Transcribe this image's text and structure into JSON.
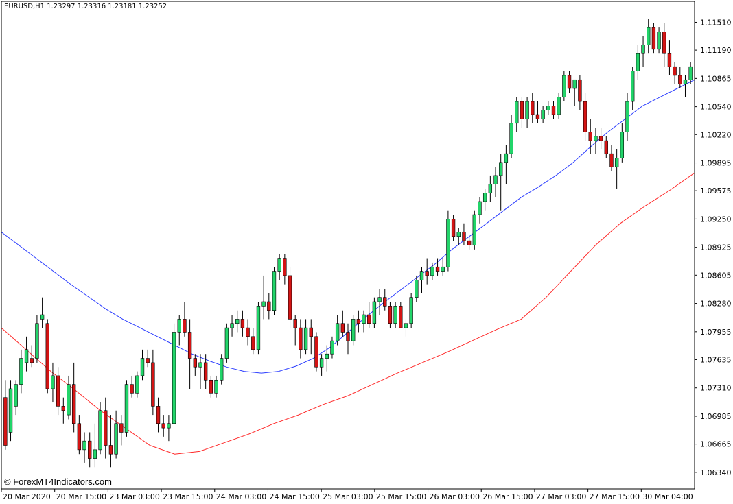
{
  "symbol_info": "EURUSD,H1  1.23297 1.23316 1.23181 1.23252",
  "watermark": "© ForexMT4Indicators.com",
  "colors": {
    "bull": "#22d56a",
    "bear": "#d41414",
    "ma_fast": "#2a3cff",
    "ma_slow": "#ff2a2a",
    "axis": "#000000"
  },
  "chart_data": {
    "type": "candlestick",
    "title": "EURUSD,H1",
    "ylim": [
      1.0615,
      1.1175
    ],
    "y_ticks": [
      "1.11510",
      "1.11190",
      "1.10865",
      "1.10540",
      "1.10220",
      "1.09895",
      "1.09575",
      "1.09250",
      "1.08925",
      "1.08605",
      "1.08280",
      "1.07955",
      "1.07635",
      "1.07310",
      "1.06985",
      "1.06665",
      "1.06340"
    ],
    "x_ticks": [
      "20 Mar 2020",
      "20 Mar 15:00",
      "23 Mar 03:00",
      "23 Mar 15:00",
      "24 Mar 03:00",
      "24 Mar 15:00",
      "25 Mar 03:00",
      "25 Mar 15:00",
      "26 Mar 03:00",
      "26 Mar 15:00",
      "27 Mar 03:00",
      "27 Mar 15:00",
      "30 Mar 04:00"
    ],
    "candles_ohlc": [
      [
        1.072,
        1.074,
        1.066,
        1.0665
      ],
      [
        1.068,
        1.074,
        1.067,
        1.073
      ],
      [
        1.071,
        1.074,
        1.07,
        1.0735
      ],
      [
        1.0735,
        1.0775,
        1.0725,
        1.0765
      ],
      [
        1.076,
        1.079,
        1.075,
        1.0775
      ],
      [
        1.0765,
        1.078,
        1.0755,
        1.076
      ],
      [
        1.0765,
        1.0815,
        1.076,
        1.0805
      ],
      [
        1.081,
        1.0835,
        1.08,
        1.0815
      ],
      [
        1.0805,
        1.081,
        1.0725,
        1.073
      ],
      [
        1.073,
        1.076,
        1.0715,
        1.0745
      ],
      [
        1.0745,
        1.0755,
        1.07,
        1.071
      ],
      [
        1.071,
        1.072,
        1.069,
        1.0705
      ],
      [
        1.07,
        1.0745,
        1.0695,
        1.0735
      ],
      [
        1.0735,
        1.076,
        1.068,
        1.069
      ],
      [
        1.069,
        1.07,
        1.0655,
        1.066
      ],
      [
        1.066,
        1.068,
        1.0645,
        1.067
      ],
      [
        1.067,
        1.068,
        1.064,
        1.065
      ],
      [
        1.065,
        1.069,
        1.064,
        1.066
      ],
      [
        1.066,
        1.0715,
        1.0655,
        1.0705
      ],
      [
        1.0705,
        1.072,
        1.065,
        1.0665
      ],
      [
        1.0665,
        1.07,
        1.064,
        1.0655
      ],
      [
        1.0655,
        1.0705,
        1.065,
        1.069
      ],
      [
        1.069,
        1.07,
        1.0665,
        1.068
      ],
      [
        1.068,
        1.074,
        1.0675,
        1.0735
      ],
      [
        1.0735,
        1.0745,
        1.072,
        1.0725
      ],
      [
        1.0725,
        1.075,
        1.072,
        1.0745
      ],
      [
        1.0745,
        1.0775,
        1.074,
        1.0765
      ],
      [
        1.0765,
        1.0775,
        1.0755,
        1.076
      ],
      [
        1.076,
        1.0775,
        1.07,
        1.071
      ],
      [
        1.071,
        1.072,
        1.068,
        1.069
      ],
      [
        1.069,
        1.07,
        1.0675,
        1.0685
      ],
      [
        1.0685,
        1.07,
        1.067,
        1.069
      ],
      [
        1.069,
        1.0805,
        1.069,
        1.0795
      ],
      [
        1.0795,
        1.0815,
        1.078,
        1.081
      ],
      [
        1.081,
        1.083,
        1.079,
        1.0795
      ],
      [
        1.0795,
        1.081,
        1.073,
        1.0765
      ],
      [
        1.0765,
        1.077,
        1.0745,
        1.0755
      ],
      [
        1.0755,
        1.077,
        1.073,
        1.076
      ],
      [
        1.076,
        1.077,
        1.073,
        1.074
      ],
      [
        1.074,
        1.0745,
        1.072,
        1.0725
      ],
      [
        1.0725,
        1.0745,
        1.072,
        1.074
      ],
      [
        1.074,
        1.077,
        1.0735,
        1.0765
      ],
      [
        1.0765,
        1.0805,
        1.076,
        1.08
      ],
      [
        1.08,
        1.0815,
        1.079,
        1.0805
      ],
      [
        1.0805,
        1.082,
        1.0795,
        1.081
      ],
      [
        1.081,
        1.082,
        1.079,
        1.08
      ],
      [
        1.08,
        1.081,
        1.078,
        1.079
      ],
      [
        1.079,
        1.08,
        1.077,
        1.0775
      ],
      [
        1.0775,
        1.083,
        1.077,
        1.0825
      ],
      [
        1.0825,
        1.086,
        1.081,
        1.083
      ],
      [
        1.083,
        1.084,
        1.081,
        1.082
      ],
      [
        1.082,
        1.087,
        1.0815,
        1.0865
      ],
      [
        1.0865,
        1.0885,
        1.0855,
        1.088
      ],
      [
        1.088,
        1.0885,
        1.085,
        1.086
      ],
      [
        1.086,
        1.087,
        1.08,
        1.081
      ],
      [
        1.081,
        1.0815,
        1.078,
        1.08
      ],
      [
        1.08,
        1.081,
        1.0765,
        1.0775
      ],
      [
        1.0775,
        1.081,
        1.077,
        1.08
      ],
      [
        1.08,
        1.081,
        1.077,
        1.079
      ],
      [
        1.079,
        1.0795,
        1.075,
        1.0755
      ],
      [
        1.0755,
        1.077,
        1.0745,
        1.0765
      ],
      [
        1.0765,
        1.078,
        1.075,
        1.077
      ],
      [
        1.077,
        1.079,
        1.0765,
        1.0785
      ],
      [
        1.0785,
        1.0815,
        1.078,
        1.0805
      ],
      [
        1.0805,
        1.082,
        1.079,
        1.0795
      ],
      [
        1.0795,
        1.0805,
        1.077,
        1.0785
      ],
      [
        1.0785,
        1.0815,
        1.078,
        1.081
      ],
      [
        1.081,
        1.082,
        1.0795,
        1.0805
      ],
      [
        1.0805,
        1.082,
        1.0795,
        1.0815
      ],
      [
        1.0815,
        1.083,
        1.08,
        1.0805
      ],
      [
        1.0805,
        1.0835,
        1.08,
        1.083
      ],
      [
        1.083,
        1.0845,
        1.0815,
        1.0835
      ],
      [
        1.0835,
        1.0845,
        1.082,
        1.0825
      ],
      [
        1.0825,
        1.083,
        1.08,
        1.0805
      ],
      [
        1.0805,
        1.083,
        1.08,
        1.0825
      ],
      [
        1.0825,
        1.083,
        1.08,
        1.08
      ],
      [
        1.08,
        1.081,
        1.079,
        1.0805
      ],
      [
        1.0805,
        1.084,
        1.08,
        1.0835
      ],
      [
        1.0835,
        1.086,
        1.083,
        1.0855
      ],
      [
        1.0855,
        1.087,
        1.084,
        1.0865
      ],
      [
        1.0865,
        1.088,
        1.085,
        1.086
      ],
      [
        1.086,
        1.0875,
        1.0855,
        1.087
      ],
      [
        1.087,
        1.088,
        1.086,
        1.0865
      ],
      [
        1.0865,
        1.088,
        1.086,
        1.087
      ],
      [
        1.087,
        1.0935,
        1.0865,
        1.0925
      ],
      [
        1.0925,
        1.093,
        1.09,
        1.0905
      ],
      [
        1.0905,
        1.0915,
        1.0895,
        1.091
      ],
      [
        1.091,
        1.092,
        1.0895,
        1.09
      ],
      [
        1.09,
        1.0905,
        1.089,
        1.0895
      ],
      [
        1.0895,
        1.0935,
        1.089,
        1.093
      ],
      [
        1.093,
        1.095,
        1.092,
        1.0945
      ],
      [
        1.0945,
        1.096,
        1.0935,
        1.0955
      ],
      [
        1.0955,
        1.0975,
        1.0945,
        1.0965
      ],
      [
        1.0965,
        1.0985,
        1.095,
        1.0975
      ],
      [
        1.0975,
        1.1,
        1.0935,
        1.099
      ],
      [
        1.099,
        1.101,
        1.0965,
        1.1
      ],
      [
        1.1,
        1.1045,
        1.0995,
        1.1035
      ],
      [
        1.1035,
        1.1065,
        1.1025,
        1.106
      ],
      [
        1.106,
        1.1065,
        1.103,
        1.104
      ],
      [
        1.104,
        1.1065,
        1.103,
        1.106
      ],
      [
        1.106,
        1.107,
        1.1035,
        1.1045
      ],
      [
        1.1045,
        1.106,
        1.1035,
        1.104
      ],
      [
        1.104,
        1.1055,
        1.1035,
        1.105
      ],
      [
        1.105,
        1.106,
        1.1045,
        1.1055
      ],
      [
        1.1055,
        1.106,
        1.104,
        1.1045
      ],
      [
        1.1045,
        1.107,
        1.104,
        1.1065
      ],
      [
        1.1065,
        1.1095,
        1.106,
        1.109
      ],
      [
        1.109,
        1.1095,
        1.107,
        1.1075
      ],
      [
        1.1075,
        1.1085,
        1.1055,
        1.1085
      ],
      [
        1.1085,
        1.109,
        1.105,
        1.106
      ],
      [
        1.106,
        1.107,
        1.1015,
        1.1025
      ],
      [
        1.1025,
        1.104,
        1.1,
        1.1015
      ],
      [
        1.1015,
        1.103,
        1.1,
        1.102
      ],
      [
        1.102,
        1.103,
        1.1005,
        1.1015
      ],
      [
        1.1015,
        1.102,
        1.0995,
        1.1
      ],
      [
        1.1,
        1.101,
        1.098,
        1.0985
      ],
      [
        1.0985,
        1.1005,
        1.096,
        1.0995
      ],
      [
        1.0995,
        1.1035,
        1.099,
        1.1025
      ],
      [
        1.1025,
        1.107,
        1.1015,
        1.106
      ],
      [
        1.106,
        1.11,
        1.105,
        1.1095
      ],
      [
        1.1095,
        1.1125,
        1.1085,
        1.1115
      ],
      [
        1.1115,
        1.1135,
        1.11,
        1.1125
      ],
      [
        1.1125,
        1.1155,
        1.1115,
        1.1145
      ],
      [
        1.1145,
        1.115,
        1.1115,
        1.112
      ],
      [
        1.112,
        1.1145,
        1.1115,
        1.114
      ],
      [
        1.114,
        1.115,
        1.11,
        1.1115
      ],
      [
        1.1115,
        1.113,
        1.109,
        1.11
      ],
      [
        1.11,
        1.1105,
        1.108,
        1.109
      ],
      [
        1.109,
        1.11,
        1.1075,
        1.108
      ],
      [
        1.108,
        1.109,
        1.1065,
        1.1085
      ],
      [
        1.1085,
        1.1105,
        1.108,
        1.11
      ]
    ],
    "ma_fast_values": [
      1.091,
      1.0895,
      1.088,
      1.0865,
      1.085,
      1.0836,
      1.0822,
      1.081,
      1.08,
      1.079,
      1.078,
      1.077,
      1.0762,
      1.0755,
      1.075,
      1.0748,
      1.075,
      1.0756,
      1.0765,
      1.0778,
      1.0795,
      1.0812,
      1.0828,
      1.0843,
      1.0858,
      1.0873,
      1.089,
      1.0905,
      1.092,
      1.0935,
      1.095,
      1.0962,
      1.0975,
      1.099,
      1.1008,
      1.1025,
      1.104,
      1.1055,
      1.1065,
      1.1075,
      1.1085
    ],
    "ma_slow_values": [
      1.08,
      1.0775,
      1.075,
      1.0728,
      1.0705,
      1.0685,
      1.0665,
      1.0655,
      1.0658,
      1.0668,
      1.0678,
      1.069,
      1.07,
      1.0712,
      1.0722,
      1.0735,
      1.0748,
      1.076,
      1.0772,
      1.0785,
      1.0798,
      1.081,
      1.0835,
      1.0865,
      1.0895,
      1.092,
      1.094,
      1.0958,
      1.0978
    ]
  }
}
